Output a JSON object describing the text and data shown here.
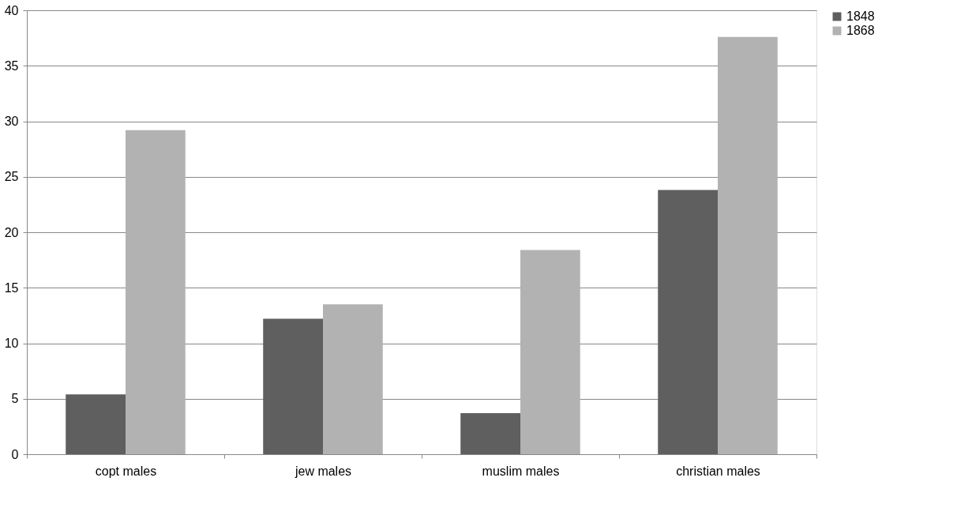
{
  "chart_data": {
    "type": "bar",
    "categories": [
      "copt males",
      "jew males",
      "muslim males",
      "christian males"
    ],
    "series": [
      {
        "name": "1848",
        "color": "#5f5f5f",
        "values": [
          5.4,
          12.2,
          3.7,
          23.8
        ]
      },
      {
        "name": "1868",
        "color": "#b2b2b2",
        "values": [
          29.2,
          13.5,
          18.4,
          37.6
        ]
      }
    ],
    "ylim": [
      0,
      40
    ],
    "yticks": [
      0,
      5,
      10,
      15,
      20,
      25,
      30,
      35,
      40
    ],
    "grid": "y",
    "legend": "right"
  }
}
